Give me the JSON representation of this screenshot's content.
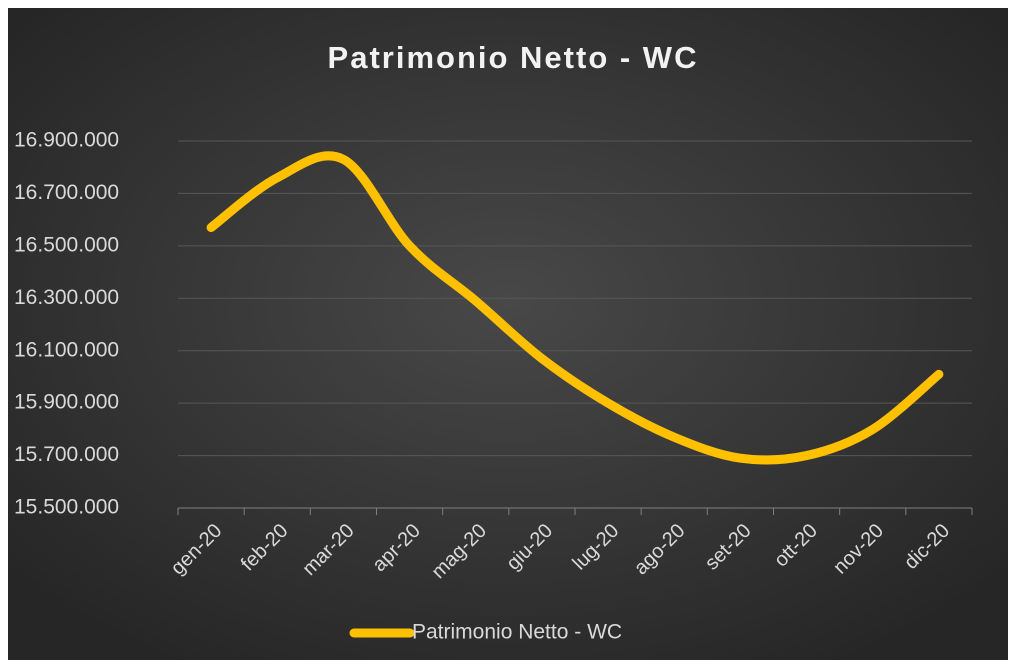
{
  "chart_data": {
    "type": "line",
    "title": "Patrimonio Netto - WC",
    "categories": [
      "gen-20",
      "feb-20",
      "mar-20",
      "apr-20",
      "mag-20",
      "giu-20",
      "lug-20",
      "ago-20",
      "set-20",
      "ott-20",
      "nov-20",
      "dic-20"
    ],
    "series": [
      {
        "name": "Patrimonio Netto - WC",
        "color": "#ffc000",
        "values": [
          16570000,
          16760000,
          16830000,
          16500000,
          16290000,
          16070000,
          15900000,
          15770000,
          15690000,
          15700000,
          15800000,
          16010000
        ]
      }
    ],
    "ylim": [
      15500000,
      16900000
    ],
    "yticks": [
      {
        "value": 15500000,
        "label": "15.500.000"
      },
      {
        "value": 15700000,
        "label": "15.700.000"
      },
      {
        "value": 15900000,
        "label": "15.900.000"
      },
      {
        "value": 16100000,
        "label": "16.100.000"
      },
      {
        "value": 16300000,
        "label": "16.300.000"
      },
      {
        "value": 16500000,
        "label": "16.500.000"
      },
      {
        "value": 16700000,
        "label": "16.700.000"
      },
      {
        "value": 16900000,
        "label": "16.900.000"
      }
    ],
    "grid": true,
    "smooth": true,
    "legend": "bottom"
  }
}
